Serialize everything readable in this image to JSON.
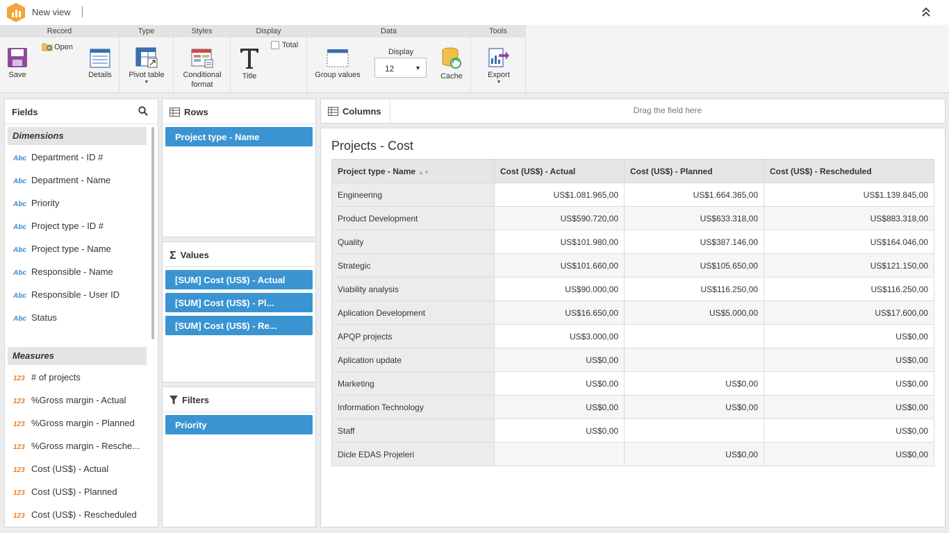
{
  "window": {
    "title": "New view"
  },
  "ribbon": {
    "groups": {
      "record": "Record",
      "type": "Type",
      "styles": "Styles",
      "display": "Display",
      "data": "Data",
      "tools": "Tools"
    },
    "buttons": {
      "save": "Save",
      "open": "Open",
      "details": "Details",
      "pivot_table": "Pivot table",
      "conditional_format_1": "Conditional",
      "conditional_format_2": "format",
      "title": "Title",
      "total": "Total",
      "group_values": "Group values",
      "display_label": "Display",
      "display_value": "12",
      "cache": "Cache",
      "export": "Export"
    }
  },
  "fields": {
    "header": "Fields",
    "dimensions_label": "Dimensions",
    "measures_label": "Measures",
    "dimensions": [
      {
        "type": "Abc",
        "label": "Department - ID #"
      },
      {
        "type": "Abc",
        "label": "Department - Name"
      },
      {
        "type": "Abc",
        "label": "Priority"
      },
      {
        "type": "Abc",
        "label": "Project type - ID #"
      },
      {
        "type": "Abc",
        "label": "Project type - Name"
      },
      {
        "type": "Abc",
        "label": "Responsible - Name"
      },
      {
        "type": "Abc",
        "label": "Responsible - User ID"
      },
      {
        "type": "Abc",
        "label": "Status"
      }
    ],
    "measures": [
      {
        "type": "123",
        "label": "# of projects"
      },
      {
        "type": "123",
        "label": "%Gross margin - Actual"
      },
      {
        "type": "123",
        "label": "%Gross margin - Planned"
      },
      {
        "type": "123",
        "label": "%Gross margin - Resche..."
      },
      {
        "type": "123",
        "label": "Cost (US$) - Actual"
      },
      {
        "type": "123",
        "label": "Cost (US$) - Planned"
      },
      {
        "type": "123",
        "label": "Cost (US$) - Rescheduled"
      }
    ]
  },
  "zones": {
    "rows": {
      "label": "Rows",
      "chips": [
        "Project type - Name"
      ]
    },
    "values": {
      "label": "Values",
      "chips": [
        "[SUM] Cost (US$) - Actual",
        "[SUM] Cost (US$) - Pl...",
        "[SUM] Cost (US$) - Re..."
      ]
    },
    "filters": {
      "label": "Filters",
      "chips": [
        "Priority"
      ]
    },
    "columns": {
      "label": "Columns",
      "hint": "Drag the field here"
    }
  },
  "pivot": {
    "title": "Projects - Cost",
    "headers": [
      "Project type - Name",
      "Cost (US$) - Actual",
      "Cost (US$) - Planned",
      "Cost (US$) - Rescheduled"
    ],
    "rows": [
      [
        "Engineering",
        "US$1.081.965,00",
        "US$1.664.365,00",
        "US$1.139.845,00"
      ],
      [
        "Product Development",
        "US$590.720,00",
        "US$633.318,00",
        "US$883.318,00"
      ],
      [
        "Quality",
        "US$101.980,00",
        "US$387.146,00",
        "US$164.046,00"
      ],
      [
        "Strategic",
        "US$101.660,00",
        "US$105.650,00",
        "US$121.150,00"
      ],
      [
        "Viability analysis",
        "US$90.000,00",
        "US$116.250,00",
        "US$116.250,00"
      ],
      [
        "Aplication Development",
        "US$16.650,00",
        "US$5.000,00",
        "US$17.600,00"
      ],
      [
        "APQP projects",
        "US$3.000,00",
        "",
        "US$0,00"
      ],
      [
        "Aplication update",
        "US$0,00",
        "",
        "US$0,00"
      ],
      [
        "Marketing",
        "US$0,00",
        "US$0,00",
        "US$0,00"
      ],
      [
        "Information Technology",
        "US$0,00",
        "US$0,00",
        "US$0,00"
      ],
      [
        "Staff",
        "US$0,00",
        "",
        "US$0,00"
      ],
      [
        "Dicle EDAS Projeleri",
        "",
        "US$0,00",
        "US$0,00"
      ]
    ]
  },
  "colors": {
    "accent": "#3a94d2",
    "abc": "#3a8bcf",
    "num": "#e8812b",
    "logo": "#f2a53a"
  }
}
